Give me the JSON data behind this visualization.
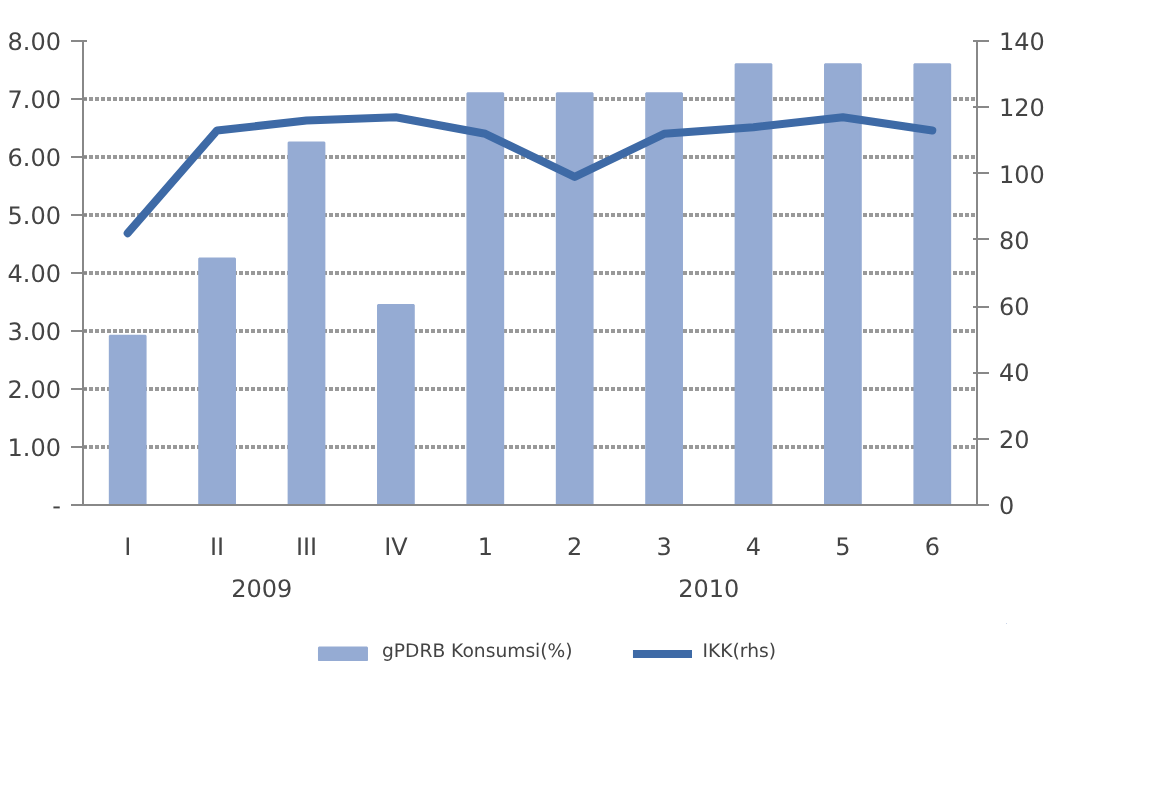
{
  "chart_data": {
    "type": "bar",
    "categories": [
      "I",
      "II",
      "III",
      "IV",
      "1",
      "2",
      "3",
      "4",
      "5",
      "6"
    ],
    "series": [
      {
        "name": "gPDRB Konsumsi(%)",
        "color": "#95abd3",
        "values": [
          2.92,
          4.25,
          6.25,
          3.45,
          7.1,
          7.1,
          7.1,
          7.6,
          7.6,
          7.6
        ]
      },
      {
        "name": "IKK(rhs)",
        "type": "line",
        "axis": "y2",
        "color": "#3e6aa6",
        "values": [
          82,
          113,
          116,
          117,
          112,
          99,
          112,
          114,
          117,
          113
        ]
      }
    ],
    "ylim": [
      0,
      8
    ],
    "yticks": [
      {
        "value": 0,
        "label": "-"
      },
      {
        "value": 1,
        "label": "1.00"
      },
      {
        "value": 2,
        "label": "2.00"
      },
      {
        "value": 3,
        "label": "3.00"
      },
      {
        "value": 4,
        "label": "4.00"
      },
      {
        "value": 5,
        "label": "5.00"
      },
      {
        "value": 6,
        "label": "6.00"
      },
      {
        "value": 7,
        "label": "7.00"
      },
      {
        "value": 8,
        "label": "8.00"
      }
    ],
    "y2lim": [
      0,
      140
    ],
    "y2ticks": [
      0,
      20,
      40,
      60,
      80,
      100,
      120,
      140
    ],
    "annotations": [
      "2009",
      "2010"
    ],
    "grid": "y",
    "legend": "bottom",
    "line_style": "solid",
    "marker": "none"
  }
}
